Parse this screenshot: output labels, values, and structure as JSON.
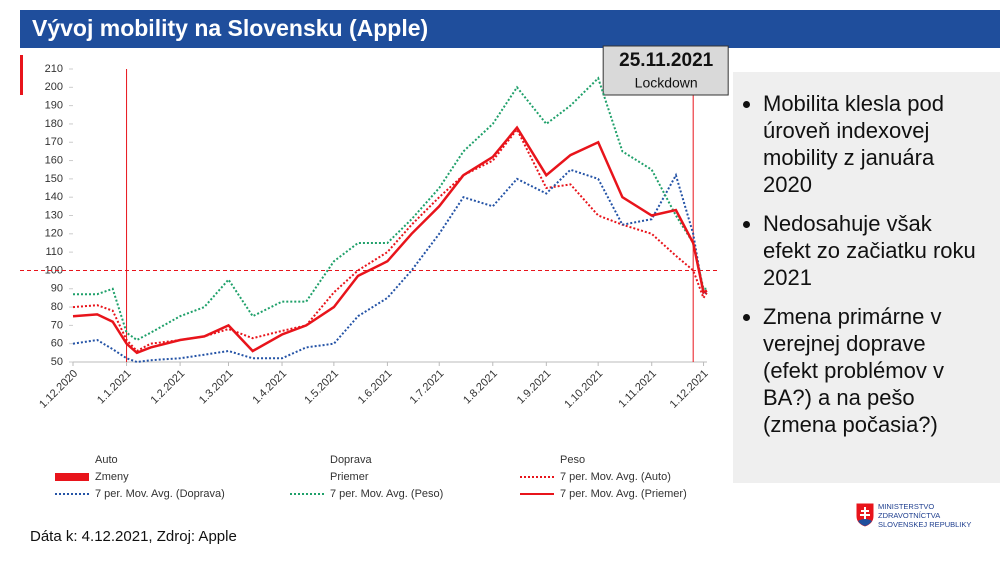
{
  "header": {
    "title": "Vývoj mobility na Slovensku (Apple)"
  },
  "chart_data": {
    "type": "line",
    "x": [
      "2020-12-01",
      "2020-12-15",
      "2020-12-24",
      "2021-01-01",
      "2021-01-07",
      "2021-01-15",
      "2021-02-01",
      "2021-02-15",
      "2021-03-01",
      "2021-03-15",
      "2021-04-01",
      "2021-04-15",
      "2021-05-01",
      "2021-05-15",
      "2021-06-01",
      "2021-06-15",
      "2021-07-01",
      "2021-07-15",
      "2021-08-01",
      "2021-08-15",
      "2021-09-01",
      "2021-09-15",
      "2021-10-01",
      "2021-10-15",
      "2021-11-01",
      "2021-11-15",
      "2021-11-25",
      "2021-12-01",
      "2021-12-03"
    ],
    "xlim": [
      "2020-12-01",
      "2021-12-03"
    ],
    "xticks": [
      {
        "value": "2020-12-01",
        "label": "1.12.2020"
      },
      {
        "value": "2021-01-01",
        "label": "1.1.2021"
      },
      {
        "value": "2021-02-01",
        "label": "1.2.2021"
      },
      {
        "value": "2021-03-01",
        "label": "1.3.2021"
      },
      {
        "value": "2021-04-01",
        "label": "1.4.2021"
      },
      {
        "value": "2021-05-01",
        "label": "1.5.2021"
      },
      {
        "value": "2021-06-01",
        "label": "1.6.2021"
      },
      {
        "value": "2021-07-01",
        "label": "1.7.2021"
      },
      {
        "value": "2021-08-01",
        "label": "1.8.2021"
      },
      {
        "value": "2021-09-01",
        "label": "1.9.2021"
      },
      {
        "value": "2021-10-01",
        "label": "1.10.2021"
      },
      {
        "value": "2021-11-01",
        "label": "1.11.2021"
      },
      {
        "value": "2021-12-01",
        "label": "1.12.2021"
      }
    ],
    "ylim": [
      50,
      210
    ],
    "yticks": [
      50,
      60,
      70,
      80,
      90,
      100,
      110,
      120,
      130,
      140,
      150,
      160,
      170,
      180,
      190,
      200,
      210
    ],
    "legend_extra": [
      {
        "name": "Auto"
      },
      {
        "name": "Doprava"
      },
      {
        "name": "Peso"
      },
      {
        "name": "Zmeny",
        "color": "#e8141b",
        "line_style": "thick"
      },
      {
        "name": "Priemer"
      }
    ],
    "series": [
      {
        "name": "7 per. Mov. Avg. (Auto)",
        "color": "#e8141b",
        "line_style": "dotted",
        "values": [
          80,
          81,
          78,
          62,
          56,
          60,
          62,
          64,
          68,
          63,
          67,
          70,
          88,
          100,
          110,
          125,
          140,
          152,
          160,
          177,
          145,
          147,
          130,
          125,
          120,
          108,
          100,
          85,
          88
        ]
      },
      {
        "name": "7 per. Mov. Avg. (Doprava)",
        "color": "#2453a6",
        "line_style": "dotted",
        "values": [
          60,
          62,
          57,
          52,
          50,
          51,
          52,
          54,
          56,
          52,
          52,
          58,
          60,
          75,
          85,
          100,
          120,
          140,
          135,
          150,
          142,
          155,
          150,
          125,
          128,
          152,
          120,
          87,
          89
        ]
      },
      {
        "name": "7 per. Mov. Avg. (Peso)",
        "color": "#1fa06a",
        "line_style": "dotted",
        "values": [
          87,
          87,
          90,
          66,
          62,
          66,
          75,
          80,
          95,
          75,
          83,
          83,
          105,
          115,
          115,
          128,
          145,
          165,
          180,
          200,
          180,
          190,
          205,
          165,
          155,
          130,
          115,
          90,
          90
        ]
      },
      {
        "name": "7 per. Mov. Avg. (Priemer)",
        "color": "#e8141b",
        "line_style": "solid",
        "values": [
          75,
          76,
          72,
          60,
          55,
          58,
          62,
          64,
          70,
          56,
          65,
          70,
          80,
          97,
          105,
          120,
          135,
          152,
          162,
          178,
          152,
          163,
          170,
          140,
          130,
          133,
          115,
          88,
          89
        ]
      }
    ],
    "hline": 100,
    "vlines": [
      "2021-01-01",
      "2021-11-25"
    ],
    "annotation": {
      "title": "25.11.2021",
      "text": "Lockdown"
    }
  },
  "bullets": [
    "Mobilita klesla pod úroveň indexovej mobility z januára 2020",
    "Nedosahuje však efekt zo začiatku roku 2021",
    "Zmena primárne v verejnej doprave (efekt problémov v BA?) a na pešo (zmena počasia?)"
  ],
  "footer": {
    "source": "Dáta k: 4.12.2021, Zdroj: Apple"
  },
  "logo": {
    "lines": [
      "MINISTERSTVO",
      "ZDRAVOTNÍCTVA",
      "SLOVENSKEJ REPUBLIKY"
    ]
  }
}
